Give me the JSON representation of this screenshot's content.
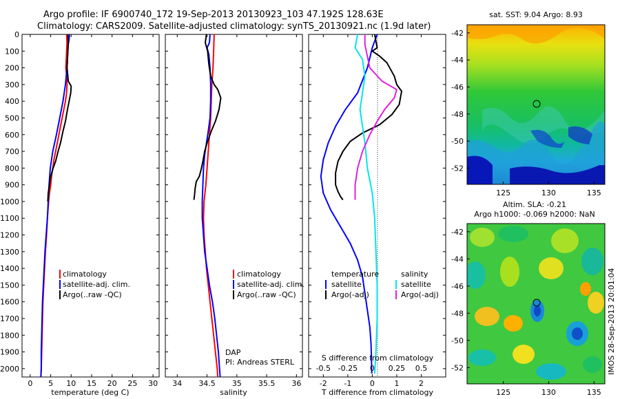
{
  "header": {
    "line1": "Argo profile: IF 6900740_172 19-Sep-2013 20130923_103 47.192S 128.63E",
    "line2": "Climatology: CARS2009. Satellite-adjusted climatology: synTS_20130921.nc (1.9d later)"
  },
  "colors": {
    "climatology": "#ff0000",
    "satellite": "#0000ff",
    "argo": "#000000",
    "salinity_satellite": "#00e5ee",
    "salinity_argo": "#e020e0"
  },
  "depth_ticks": [
    "0",
    "100",
    "200",
    "300",
    "400",
    "500",
    "600",
    "700",
    "800",
    "900",
    "1000",
    "1100",
    "1200",
    "1300",
    "1400",
    "1500",
    "1600",
    "1700",
    "1800",
    "1900",
    "2000"
  ],
  "chart_data": [
    {
      "type": "line",
      "id": "temperature",
      "xlabel": "temperature (deg C)",
      "ylabel": "",
      "xlim": [
        -2,
        31.5
      ],
      "ylim": [
        2050,
        0
      ],
      "x_ticks": [
        "0",
        "5",
        "10",
        "15",
        "20",
        "25",
        "30"
      ],
      "legend": [
        "climatology",
        "satellite-adj. clim.",
        "Argo(..raw -QC)"
      ],
      "legend_position": "lower-right",
      "series": [
        {
          "name": "climatology",
          "color": "#ff0000",
          "points": [
            [
              8.9,
              0
            ],
            [
              9.0,
              50
            ],
            [
              8.9,
              100
            ],
            [
              8.8,
              150
            ],
            [
              8.7,
              200
            ],
            [
              8.9,
              250
            ],
            [
              9.0,
              300
            ],
            [
              8.9,
              350
            ],
            [
              8.6,
              400
            ],
            [
              8.2,
              450
            ],
            [
              7.8,
              500
            ],
            [
              7.4,
              550
            ],
            [
              7.0,
              600
            ],
            [
              6.6,
              650
            ],
            [
              6.2,
              700
            ],
            [
              5.8,
              750
            ],
            [
              5.5,
              800
            ],
            [
              5.2,
              850
            ],
            [
              5.0,
              900
            ],
            [
              4.7,
              950
            ],
            [
              4.5,
              1000
            ],
            [
              4.2,
              1100
            ],
            [
              4.0,
              1200
            ],
            [
              3.7,
              1300
            ],
            [
              3.5,
              1400
            ],
            [
              3.3,
              1500
            ],
            [
              3.1,
              1600
            ],
            [
              3.0,
              1700
            ],
            [
              2.9,
              1800
            ],
            [
              2.8,
              1900
            ],
            [
              2.7,
              2000
            ],
            [
              2.6,
              2050
            ]
          ]
        },
        {
          "name": "satellite-adj. clim.",
          "color": "#0000ff",
          "points": [
            [
              9.6,
              0
            ],
            [
              9.5,
              30
            ],
            [
              9.3,
              60
            ],
            [
              9.2,
              100
            ],
            [
              9.0,
              200
            ],
            [
              8.6,
              300
            ],
            [
              8.0,
              400
            ],
            [
              7.2,
              500
            ],
            [
              6.4,
              600
            ],
            [
              5.5,
              700
            ],
            [
              4.9,
              800
            ],
            [
              4.6,
              900
            ],
            [
              4.4,
              1000
            ],
            [
              4.2,
              1100
            ],
            [
              3.9,
              1200
            ],
            [
              3.6,
              1300
            ],
            [
              3.4,
              1400
            ],
            [
              3.2,
              1500
            ],
            [
              3.0,
              1600
            ],
            [
              2.9,
              1700
            ],
            [
              2.8,
              1800
            ],
            [
              2.7,
              1900
            ],
            [
              2.7,
              2000
            ],
            [
              2.6,
              2050
            ]
          ]
        },
        {
          "name": "Argo(..raw -QC)",
          "color": "#000000",
          "points": [
            [
              9.2,
              0
            ],
            [
              9.3,
              40
            ],
            [
              9.2,
              100
            ],
            [
              9.1,
              150
            ],
            [
              9.0,
              200
            ],
            [
              9.2,
              250
            ],
            [
              9.3,
              280
            ],
            [
              10.0,
              310
            ],
            [
              9.9,
              350
            ],
            [
              9.5,
              400
            ],
            [
              9.1,
              450
            ],
            [
              8.6,
              520
            ],
            [
              8.0,
              580
            ],
            [
              7.4,
              650
            ],
            [
              6.8,
              700
            ],
            [
              6.2,
              760
            ],
            [
              5.6,
              800
            ],
            [
              5.0,
              850
            ],
            [
              4.7,
              900
            ],
            [
              4.4,
              950
            ],
            [
              4.3,
              1000
            ]
          ]
        }
      ]
    },
    {
      "type": "line",
      "id": "salinity",
      "xlabel": "salinity",
      "ylabel": "",
      "xlim": [
        33.8,
        36.1
      ],
      "ylim": [
        2050,
        0
      ],
      "x_ticks": [
        "34",
        "34.5",
        "35",
        "35.5",
        "36"
      ],
      "legend": [
        "climatology",
        "satellite-adj. clim.",
        "Argo(..raw -QC)"
      ],
      "legend_position": "lower-right",
      "annotation": [
        "DAP",
        "PI: Andreas STERL"
      ],
      "series": [
        {
          "name": "climatology",
          "color": "#ff0000",
          "points": [
            [
              34.62,
              0
            ],
            [
              34.61,
              100
            ],
            [
              34.6,
              200
            ],
            [
              34.58,
              300
            ],
            [
              34.57,
              400
            ],
            [
              34.56,
              500
            ],
            [
              34.54,
              600
            ],
            [
              34.52,
              700
            ],
            [
              34.5,
              800
            ],
            [
              34.48,
              900
            ],
            [
              34.45,
              1000
            ],
            [
              34.44,
              1100
            ],
            [
              34.45,
              1200
            ],
            [
              34.47,
              1300
            ],
            [
              34.49,
              1400
            ],
            [
              34.52,
              1500
            ],
            [
              34.55,
              1600
            ],
            [
              34.58,
              1700
            ],
            [
              34.61,
              1800
            ],
            [
              34.64,
              1900
            ],
            [
              34.67,
              2000
            ],
            [
              34.68,
              2050
            ]
          ]
        },
        {
          "name": "satellite-adj. clim.",
          "color": "#0000ff",
          "points": [
            [
              34.55,
              0
            ],
            [
              34.54,
              50
            ],
            [
              34.5,
              80
            ],
            [
              34.53,
              120
            ],
            [
              34.55,
              200
            ],
            [
              34.56,
              300
            ],
            [
              34.56,
              400
            ],
            [
              34.55,
              500
            ],
            [
              34.52,
              580
            ],
            [
              34.49,
              650
            ],
            [
              34.46,
              720
            ],
            [
              34.44,
              800
            ],
            [
              34.43,
              900
            ],
            [
              34.42,
              1000
            ],
            [
              34.42,
              1100
            ],
            [
              34.44,
              1200
            ],
            [
              34.46,
              1300
            ],
            [
              34.5,
              1400
            ],
            [
              34.54,
              1500
            ],
            [
              34.59,
              1600
            ],
            [
              34.63,
              1700
            ],
            [
              34.66,
              1800
            ],
            [
              34.69,
              1900
            ],
            [
              34.71,
              2000
            ],
            [
              34.72,
              2050
            ]
          ]
        },
        {
          "name": "Argo(..raw -QC)",
          "color": "#000000",
          "points": [
            [
              34.49,
              0
            ],
            [
              34.47,
              50
            ],
            [
              34.51,
              100
            ],
            [
              34.53,
              180
            ],
            [
              34.56,
              250
            ],
            [
              34.62,
              300
            ],
            [
              34.68,
              330
            ],
            [
              34.73,
              380
            ],
            [
              34.7,
              450
            ],
            [
              34.64,
              520
            ],
            [
              34.57,
              580
            ],
            [
              34.5,
              650
            ],
            [
              34.46,
              700
            ],
            [
              34.43,
              760
            ],
            [
              34.4,
              810
            ],
            [
              34.37,
              850
            ],
            [
              34.32,
              880
            ],
            [
              34.3,
              920
            ],
            [
              34.29,
              960
            ],
            [
              34.28,
              990
            ]
          ]
        }
      ]
    },
    {
      "type": "line",
      "id": "difference",
      "xlabel": "T difference from climatology",
      "xlabel_top": "S difference from climatology",
      "ylabel": "",
      "xlim": [
        -2.6,
        3.0
      ],
      "ylim": [
        2050,
        0
      ],
      "x_ticks": [
        "-2",
        "-1",
        "0",
        "1",
        "2"
      ],
      "s_ticks": [
        "-0.5",
        "-0.25",
        "0",
        "0.25",
        "0.5"
      ],
      "legend_temperature_title": "temperature",
      "legend_salinity_title": "salinity",
      "legend": [
        "satellite",
        "Argo(-adj)",
        "satellite",
        "Argo(-adj)"
      ],
      "legend_position": "lower-center",
      "series": [
        {
          "name": "satellite",
          "color": "#0000ff",
          "points": [
            [
              0.2,
              0
            ],
            [
              0.0,
              80
            ],
            [
              -0.2,
              200
            ],
            [
              -0.6,
              350
            ],
            [
              -1.1,
              450
            ],
            [
              -1.5,
              550
            ],
            [
              -1.8,
              650
            ],
            [
              -2.0,
              750
            ],
            [
              -2.1,
              850
            ],
            [
              -2.0,
              950
            ],
            [
              -1.7,
              1050
            ],
            [
              -1.3,
              1150
            ],
            [
              -0.9,
              1250
            ],
            [
              -0.6,
              1350
            ],
            [
              -0.4,
              1450
            ],
            [
              -0.3,
              1550
            ],
            [
              -0.2,
              1650
            ],
            [
              -0.1,
              1750
            ],
            [
              -0.05,
              1850
            ],
            [
              -0.03,
              1950
            ],
            [
              -0.02,
              2030
            ]
          ]
        },
        {
          "name": "Argo(-adj)",
          "color": "#000000",
          "points": [
            [
              0.1,
              0
            ],
            [
              0.2,
              80
            ],
            [
              0.0,
              100
            ],
            [
              0.3,
              130
            ],
            [
              0.6,
              170
            ],
            [
              0.9,
              250
            ],
            [
              1.0,
              300
            ],
            [
              1.2,
              340
            ],
            [
              1.1,
              420
            ],
            [
              0.8,
              480
            ],
            [
              0.3,
              540
            ],
            [
              -0.4,
              590
            ],
            [
              -0.9,
              640
            ],
            [
              -1.2,
              700
            ],
            [
              -1.4,
              760
            ],
            [
              -1.5,
              830
            ],
            [
              -1.5,
              900
            ],
            [
              -1.4,
              940
            ],
            [
              -1.3,
              970
            ],
            [
              -1.2,
              990
            ]
          ]
        },
        {
          "name": "salinity satellite",
          "color": "#00e5ee",
          "points": [
            [
              -0.6,
              0
            ],
            [
              -0.7,
              80
            ],
            [
              -0.4,
              150
            ],
            [
              -0.3,
              250
            ],
            [
              -0.4,
              350
            ],
            [
              -0.5,
              450
            ],
            [
              -0.4,
              550
            ],
            [
              -0.3,
              650
            ],
            [
              -0.2,
              800
            ],
            [
              0.0,
              950
            ],
            [
              0.1,
              1100
            ],
            [
              0.15,
              1300
            ],
            [
              0.2,
              1500
            ],
            [
              0.2,
              1700
            ],
            [
              0.15,
              1900
            ],
            [
              0.1,
              2030
            ]
          ]
        },
        {
          "name": "salinity Argo(-adj)",
          "color": "#e020e0",
          "points": [
            [
              -0.3,
              0
            ],
            [
              -0.3,
              60
            ],
            [
              -0.1,
              200
            ],
            [
              0.4,
              280
            ],
            [
              1.0,
              330
            ],
            [
              0.9,
              380
            ],
            [
              0.5,
              450
            ],
            [
              0.2,
              520
            ],
            [
              -0.1,
              600
            ],
            [
              -0.4,
              700
            ],
            [
              -0.6,
              800
            ],
            [
              -0.7,
              900
            ],
            [
              -0.7,
              990
            ]
          ]
        }
      ]
    }
  ],
  "map_sst": {
    "title": "sat. SST: 9.04 Argo: 8.93",
    "lat_ticks": [
      "-42",
      "-44",
      "-46",
      "-48",
      "-50",
      "-52"
    ],
    "lon_ticks": [
      "125",
      "130",
      "135"
    ],
    "marker": {
      "lon": 128.63,
      "lat": -47.19
    }
  },
  "map_sla": {
    "title1": "Altim. SLA: -0.21",
    "title2": "Argo h1000: -0.069 h2000: NaN",
    "lat_ticks": [
      "-42",
      "-44",
      "-46",
      "-48",
      "-50",
      "-52"
    ],
    "lon_ticks": [
      "125",
      "130",
      "135"
    ],
    "marker": {
      "lon": 128.63,
      "lat": -47.19
    }
  },
  "credit": "IMOS 28-Sep-2013 20:01:04"
}
